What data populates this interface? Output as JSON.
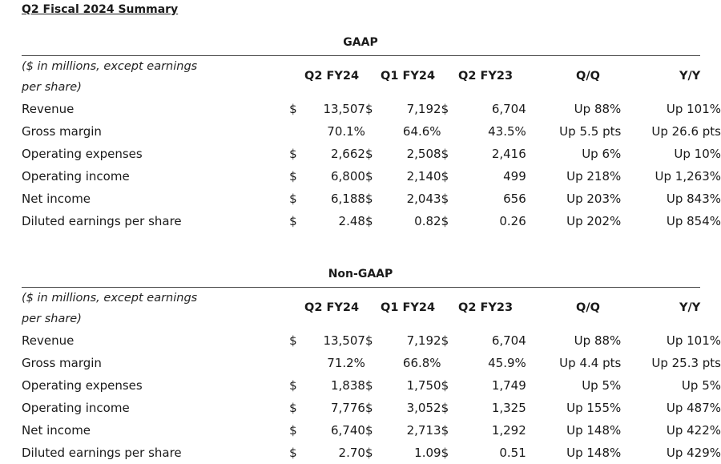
{
  "page_title": "Q2 Fiscal 2024 Summary",
  "columns": [
    "Q2 FY24",
    "Q1 FY24",
    "Q2 FY23",
    "Q/Q",
    "Y/Y"
  ],
  "currency_symbol": "$",
  "note": "($ in millions, except earnings per share)",
  "sections": [
    {
      "heading": "GAAP",
      "rows": [
        {
          "label": "Revenue",
          "dollar": true,
          "q2fy24": "13,507",
          "q1fy24": "7,192",
          "q2fy23": "6,704",
          "qq": "Up 88%",
          "yy": "Up 101%"
        },
        {
          "label": "Gross margin",
          "dollar": false,
          "q2fy24": "70.1%",
          "q1fy24": "64.6%",
          "q2fy23": "43.5%",
          "qq": "Up 5.5 pts",
          "yy": "Up 26.6 pts"
        },
        {
          "label": "Operating expenses",
          "dollar": true,
          "q2fy24": "2,662",
          "q1fy24": "2,508",
          "q2fy23": "2,416",
          "qq": "Up 6%",
          "yy": "Up 10%"
        },
        {
          "label": "Operating income",
          "dollar": true,
          "q2fy24": "6,800",
          "q1fy24": "2,140",
          "q2fy23": "499",
          "qq": "Up 218%",
          "yy": "Up 1,263%"
        },
        {
          "label": "Net income",
          "dollar": true,
          "q2fy24": "6,188",
          "q1fy24": "2,043",
          "q2fy23": "656",
          "qq": "Up 203%",
          "yy": "Up 843%"
        },
        {
          "label": "Diluted earnings per share",
          "dollar": true,
          "q2fy24": "2.48",
          "q1fy24": "0.82",
          "q2fy23": "0.26",
          "qq": "Up 202%",
          "yy": "Up 854%"
        }
      ]
    },
    {
      "heading": "Non-GAAP",
      "rows": [
        {
          "label": "Revenue",
          "dollar": true,
          "q2fy24": "13,507",
          "q1fy24": "7,192",
          "q2fy23": "6,704",
          "qq": "Up 88%",
          "yy": "Up 101%"
        },
        {
          "label": "Gross margin",
          "dollar": false,
          "q2fy24": "71.2%",
          "q1fy24": "66.8%",
          "q2fy23": "45.9%",
          "qq": "Up 4.4 pts",
          "yy": "Up 25.3 pts"
        },
        {
          "label": "Operating expenses",
          "dollar": true,
          "q2fy24": "1,838",
          "q1fy24": "1,750",
          "q2fy23": "1,749",
          "qq": "Up 5%",
          "yy": "Up 5%"
        },
        {
          "label": "Operating income",
          "dollar": true,
          "q2fy24": "7,776",
          "q1fy24": "3,052",
          "q2fy23": "1,325",
          "qq": "Up 155%",
          "yy": "Up 487%"
        },
        {
          "label": "Net income",
          "dollar": true,
          "q2fy24": "6,740",
          "q1fy24": "2,713",
          "q2fy23": "1,292",
          "qq": "Up 148%",
          "yy": "Up 422%"
        },
        {
          "label": "Diluted earnings per share",
          "dollar": true,
          "q2fy24": "2.70",
          "q1fy24": "1.09",
          "q2fy23": "0.51",
          "qq": "Up 148%",
          "yy": "Up 429%"
        }
      ]
    }
  ]
}
